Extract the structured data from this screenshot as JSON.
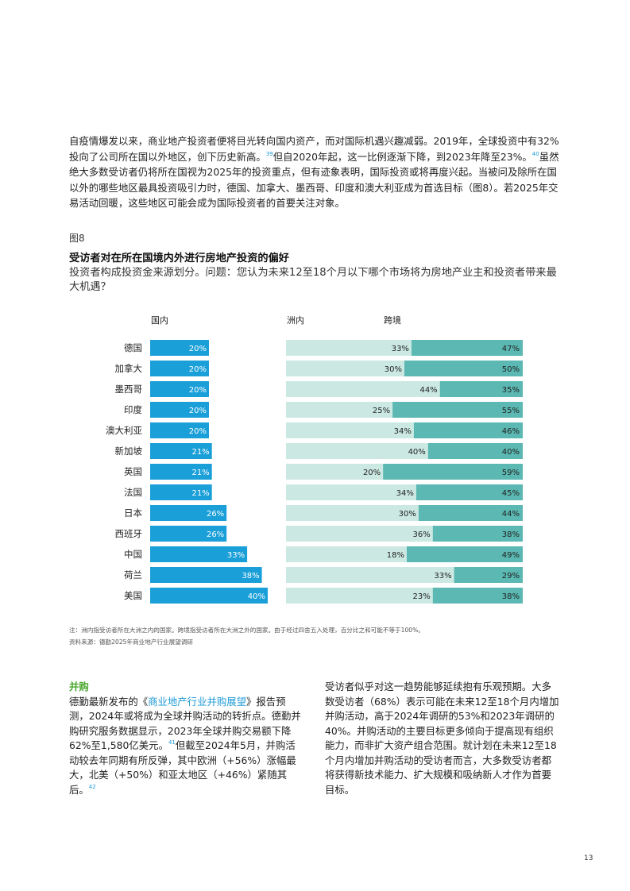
{
  "intro": {
    "text_1": "自疫情爆发以来，商业地产投资者便将目光转向国内资产，而对国际机遇兴趣减弱。2019年，全球投资中有32%投向了公司所在国以外地区，创下历史新高。",
    "ref_39": "39",
    "text_2": "但自2020年起，这一比例逐渐下降，到2023年降至23%。",
    "ref_40": "40",
    "text_3": "虽然绝大多数受访者仍将所在国视为2025年的投资重点，但有迹象表明，国际投资或将再度兴起。当被问及除所在国以外的哪些地区最具投资吸引力时，德国、加拿大、墨西哥、印度和澳大利亚成为首选目标（图8）。若2025年交易活动回暖，这些地区可能会成为国际投资者的首要关注对象。"
  },
  "figure": {
    "label": "图8",
    "title": "受访者对在所在国境内外进行房地产投资的偏好",
    "subtitle": "投资者构成投资金来源划分。问题：您认为未来12至18个月以下哪个市场将为房地产业主和投资者带来最大机遇？"
  },
  "chart_data": {
    "type": "bar",
    "columns": [
      "国内",
      "洲内",
      "跨境"
    ],
    "categories": [
      "德国",
      "加拿大",
      "墨西哥",
      "印度",
      "澳大利亚",
      "新加坡",
      "英国",
      "法国",
      "日本",
      "西班牙",
      "中国",
      "荷兰",
      "美国"
    ],
    "series": [
      {
        "name": "国内",
        "values": [
          20,
          20,
          20,
          20,
          20,
          21,
          21,
          21,
          26,
          26,
          33,
          38,
          40
        ],
        "color": "#1a9fd9"
      },
      {
        "name": "洲内",
        "values": [
          33,
          30,
          44,
          25,
          34,
          40,
          20,
          34,
          30,
          36,
          18,
          33,
          23
        ],
        "color": "#cbe9e2"
      },
      {
        "name": "跨境",
        "values": [
          47,
          50,
          35,
          55,
          46,
          40,
          59,
          45,
          44,
          38,
          49,
          29,
          38
        ],
        "color": "#5bb8b2"
      }
    ],
    "value_suffix": "%"
  },
  "notes": {
    "note": "注：洲内指受访者所在大洲之内的国家。跨境指受访者所在大洲之外的国家。由于经过四舍五入处理，百分比之和可能不等于100%。",
    "source": "资料来源：德勤2025年商业地产行业展望调研"
  },
  "ma": {
    "heading": "并购",
    "text_1": "德勤最新发布的《",
    "link": "商业地产行业并购展望",
    "text_2": "》报告预测，2024年或将成为全球并购活动的转折点。德勤并购研究服务数据显示，2023年全球并购交易额下降62%至1,580亿美元。",
    "ref_41": "41",
    "text_3": "但截至2024年5月，并购活动较去年同期有所反弹，其中欧洲（+56%）涨幅最大，北美（+50%）和亚太地区（+46%）紧随其后。",
    "ref_42": "42",
    "right_text": "受访者似乎对这一趋势能够延续抱有乐观预期。大多数受访者（68%）表示可能在未来12至18个月内增加并购活动，高于2024年调研的53%和2023年调研的40%。并购活动的主要目标更多倾向于提高现有组织能力，而非扩大资产组合范围。就计划在未来12至18个月内增加并购活动的受访者而言，大多数受访者都将获得新技术能力、扩大规模和吸纳新人才作为首要目标。"
  },
  "page_number": "13"
}
